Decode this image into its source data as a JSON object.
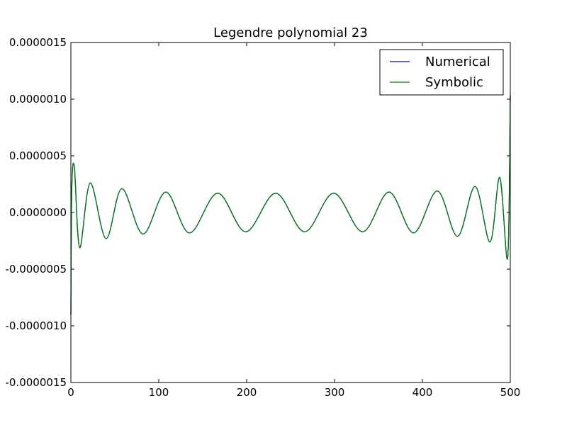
{
  "chart_data": {
    "type": "line",
    "title": "Legendre polynomial 23",
    "xlabel": "",
    "ylabel": "",
    "xlim": [
      0,
      500
    ],
    "ylim": [
      -1.5e-06,
      1.5e-06
    ],
    "x_ticks": [
      0,
      100,
      200,
      300,
      400,
      500
    ],
    "x_tick_labels": [
      "0",
      "100",
      "200",
      "300",
      "400",
      "500"
    ],
    "y_ticks": [
      1.5e-06,
      1e-06,
      5e-07,
      0.0,
      -5e-07,
      -1e-06,
      -1.5e-06
    ],
    "y_tick_labels": [
      "0.0000015",
      "0.0000010",
      "0.0000005",
      "0.0000000",
      "-0.0000005",
      "-0.0000010",
      "-0.0000015"
    ],
    "grid": false,
    "legend_position": "top-right",
    "series": [
      {
        "name": "Numerical",
        "color": "#0000ff",
        "x": [
          0,
          1,
          4,
          10,
          22,
          40,
          58,
          82,
          108,
          135,
          167,
          199,
          233,
          266,
          299,
          332,
          362,
          390,
          417,
          440,
          460,
          477,
          488,
          497,
          500
        ],
        "y": [
          -9e-07,
          2e-07,
          4e-07,
          -3.1e-07,
          2.6e-07,
          -2.3e-07,
          2.1e-07,
          -1.9e-07,
          1.8e-07,
          -1.8e-07,
          1.7e-07,
          -1.7e-07,
          1.7e-07,
          -1.7e-07,
          1.7e-07,
          -1.7e-07,
          1.8e-07,
          -1.8e-07,
          1.9e-07,
          -2.1e-07,
          2.3e-07,
          -2.6e-07,
          3.1e-07,
          -4e-07,
          1.03e-06
        ]
      },
      {
        "name": "Symbolic",
        "color": "#008000",
        "x": [
          0,
          1,
          4,
          10,
          22,
          40,
          58,
          82,
          108,
          135,
          167,
          199,
          233,
          266,
          299,
          332,
          362,
          390,
          417,
          440,
          460,
          477,
          488,
          497,
          500
        ],
        "y": [
          -9e-07,
          2e-07,
          4e-07,
          -3.1e-07,
          2.6e-07,
          -2.3e-07,
          2.1e-07,
          -1.9e-07,
          1.8e-07,
          -1.8e-07,
          1.7e-07,
          -1.7e-07,
          1.7e-07,
          -1.7e-07,
          1.7e-07,
          -1.7e-07,
          1.8e-07,
          -1.8e-07,
          1.9e-07,
          -2.1e-07,
          2.3e-07,
          -2.6e-07,
          3.1e-07,
          -4e-07,
          1.03e-06
        ]
      }
    ]
  }
}
